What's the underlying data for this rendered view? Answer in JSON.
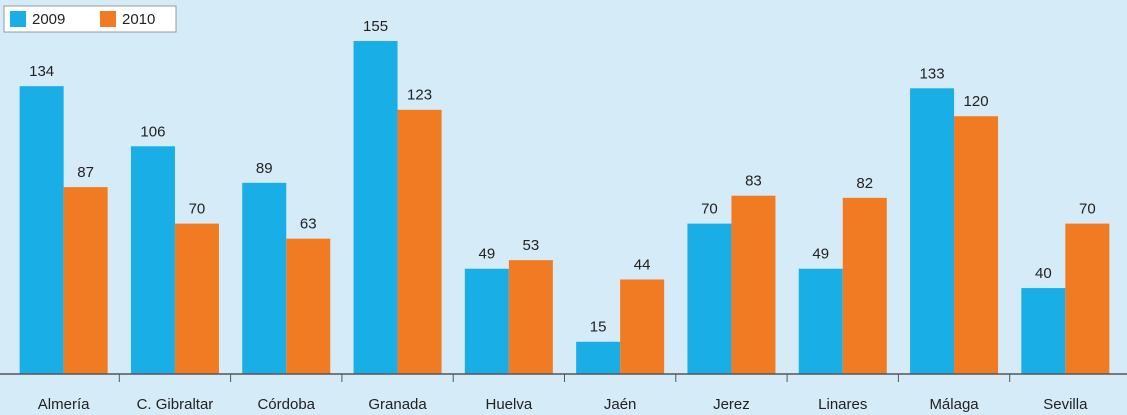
{
  "chart_data": {
    "type": "bar",
    "categories": [
      "Almería",
      "C. Gibraltar",
      "Córdoba",
      "Granada",
      "Huelva",
      "Jaén",
      "Jerez",
      "Linares",
      "Málaga",
      "Sevilla"
    ],
    "series": [
      {
        "name": "2009",
        "color": "#1aaee6",
        "values": [
          134,
          106,
          89,
          155,
          49,
          15,
          70,
          49,
          133,
          40
        ]
      },
      {
        "name": "2010",
        "color": "#f07b22",
        "values": [
          87,
          70,
          63,
          123,
          53,
          44,
          83,
          82,
          120,
          70
        ]
      }
    ],
    "ylim": [
      0,
      162
    ],
    "legend": "top-left"
  }
}
